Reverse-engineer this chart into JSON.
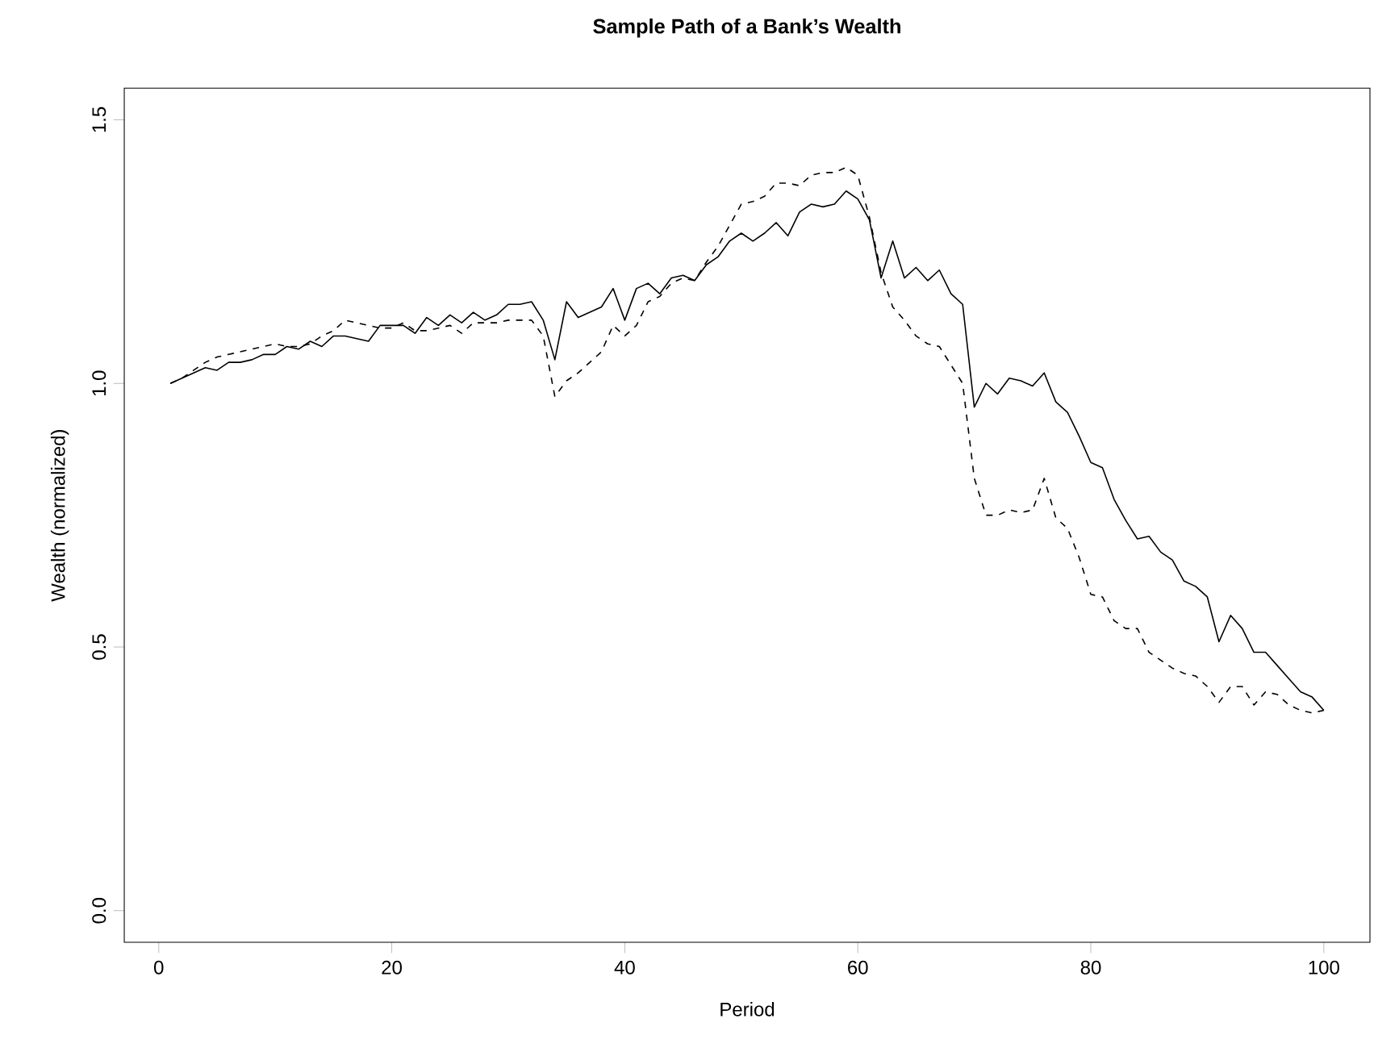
{
  "chart_data": {
    "type": "line",
    "title": "Sample Path of a Bank’s Wealth",
    "xlabel": "Period",
    "ylabel": "Wealth (normalized)",
    "x": [
      1,
      2,
      3,
      4,
      5,
      6,
      7,
      8,
      9,
      10,
      11,
      12,
      13,
      14,
      15,
      16,
      17,
      18,
      19,
      20,
      21,
      22,
      23,
      24,
      25,
      26,
      27,
      28,
      29,
      30,
      31,
      32,
      33,
      34,
      35,
      36,
      37,
      38,
      39,
      40,
      41,
      42,
      43,
      44,
      45,
      46,
      47,
      48,
      49,
      50,
      51,
      52,
      53,
      54,
      55,
      56,
      57,
      58,
      59,
      60,
      61,
      62,
      63,
      64,
      65,
      66,
      67,
      68,
      69,
      70,
      71,
      72,
      73,
      74,
      75,
      76,
      77,
      78,
      79,
      80,
      81,
      82,
      83,
      84,
      85,
      86,
      87,
      88,
      89,
      90,
      91,
      92,
      93,
      94,
      95,
      96,
      97,
      98,
      99,
      100
    ],
    "series": [
      {
        "color": "#000000",
        "line_style": "solid",
        "values": [
          1.0,
          1.01,
          1.02,
          1.03,
          1.025,
          1.04,
          1.04,
          1.045,
          1.055,
          1.055,
          1.07,
          1.065,
          1.08,
          1.07,
          1.09,
          1.09,
          1.085,
          1.08,
          1.11,
          1.11,
          1.11,
          1.095,
          1.125,
          1.11,
          1.13,
          1.115,
          1.135,
          1.12,
          1.13,
          1.15,
          1.15,
          1.155,
          1.12,
          1.045,
          1.155,
          1.125,
          1.135,
          1.145,
          1.18,
          1.12,
          1.18,
          1.19,
          1.17,
          1.2,
          1.205,
          1.195,
          1.225,
          1.24,
          1.27,
          1.285,
          1.27,
          1.285,
          1.305,
          1.28,
          1.325,
          1.34,
          1.335,
          1.34,
          1.365,
          1.35,
          1.31,
          1.2,
          1.27,
          1.2,
          1.22,
          1.195,
          1.215,
          1.17,
          1.15,
          0.955,
          1.0,
          0.98,
          1.01,
          1.005,
          0.995,
          1.02,
          0.965,
          0.945,
          0.9,
          0.85,
          0.84,
          0.78,
          0.74,
          0.705,
          0.71,
          0.68,
          0.665,
          0.625,
          0.615,
          0.595,
          0.51,
          0.56,
          0.535,
          0.49,
          0.49,
          0.465,
          0.44,
          0.415,
          0.405,
          0.38
        ]
      },
      {
        "color": "#000000",
        "line_style": "dashed",
        "values": [
          1.0,
          1.01,
          1.025,
          1.04,
          1.05,
          1.055,
          1.06,
          1.065,
          1.07,
          1.075,
          1.07,
          1.07,
          1.075,
          1.09,
          1.1,
          1.12,
          1.115,
          1.11,
          1.105,
          1.105,
          1.115,
          1.1,
          1.1,
          1.105,
          1.11,
          1.095,
          1.115,
          1.115,
          1.115,
          1.12,
          1.12,
          1.12,
          1.09,
          0.975,
          1.005,
          1.02,
          1.04,
          1.06,
          1.11,
          1.09,
          1.11,
          1.155,
          1.165,
          1.19,
          1.2,
          1.195,
          1.23,
          1.26,
          1.3,
          1.34,
          1.345,
          1.355,
          1.38,
          1.38,
          1.375,
          1.395,
          1.4,
          1.4,
          1.41,
          1.395,
          1.315,
          1.21,
          1.145,
          1.12,
          1.09,
          1.075,
          1.07,
          1.035,
          1.0,
          0.82,
          0.75,
          0.75,
          0.76,
          0.755,
          0.76,
          0.82,
          0.745,
          0.725,
          0.67,
          0.6,
          0.595,
          0.55,
          0.535,
          0.535,
          0.49,
          0.475,
          0.46,
          0.45,
          0.445,
          0.425,
          0.395,
          0.425,
          0.425,
          0.39,
          0.415,
          0.41,
          0.39,
          0.38,
          0.375,
          0.38
        ]
      }
    ],
    "xlim": [
      -2.96,
      103.96
    ],
    "ylim": [
      -0.06,
      1.56
    ],
    "xticks": [
      0,
      20,
      40,
      60,
      80,
      100
    ],
    "yticks": [
      {
        "value": 0,
        "label": "0.0"
      },
      {
        "value": 0.5,
        "label": "0.5"
      },
      {
        "value": 1,
        "label": "1.0"
      },
      {
        "value": 1.5,
        "label": "1.5"
      }
    ],
    "marker": "none"
  }
}
